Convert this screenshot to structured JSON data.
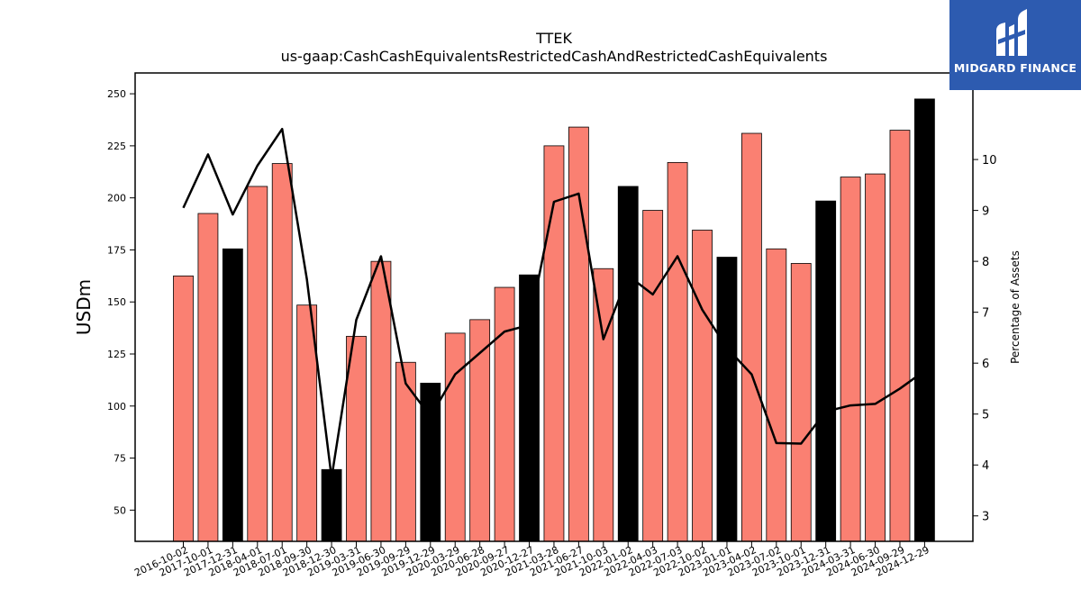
{
  "logo": {
    "text": "MIDGARD FINANCE",
    "bg_color": "#2d5bb0"
  },
  "chart_data": {
    "type": "bar",
    "title": "TTEK",
    "subtitle": "us-gaap:CashCashEquivalentsRestrictedCashAndRestrictedCashEquivalents",
    "ylabel": "USDm",
    "y2label": "Percentage of Assets",
    "ylim": [
      35,
      260
    ],
    "y2lim": [
      2.5,
      11.7
    ],
    "yticks": [
      50,
      75,
      100,
      125,
      150,
      175,
      200,
      225,
      250
    ],
    "y2ticks": [
      3,
      4,
      5,
      6,
      7,
      8,
      9,
      10
    ],
    "categories": [
      "2016-10-02",
      "2017-10-01",
      "2017-12-31",
      "2018-04-01",
      "2018-07-01",
      "2018-09-30",
      "2018-12-30",
      "2019-03-31",
      "2019-06-30",
      "2019-09-29",
      "2019-12-29",
      "2020-03-29",
      "2020-06-28",
      "2020-09-27",
      "2020-12-27",
      "2021-03-28",
      "2021-06-27",
      "2021-10-03",
      "2022-01-02",
      "2022-04-03",
      "2022-07-03",
      "2022-10-02",
      "2023-01-01",
      "2023-04-02",
      "2023-07-02",
      "2023-10-01",
      "2023-12-31",
      "2024-03-31",
      "2024-06-30",
      "2024-09-29",
      "2024-12-29"
    ],
    "series": [
      {
        "type": "bar",
        "values": [
          162.5,
          192.5,
          175.5,
          205.5,
          216.5,
          148.5,
          69.5,
          133.5,
          169.5,
          121,
          111,
          135,
          141.5,
          157,
          163,
          225,
          234,
          166,
          205.5,
          194,
          217,
          184.5,
          171.5,
          231,
          175.5,
          168.5,
          198.5,
          210,
          211.5,
          232.5,
          247.5
        ],
        "colors": [
          "#fa8072",
          "#fa8072",
          "#000000",
          "#fa8072",
          "#fa8072",
          "#fa8072",
          "#000000",
          "#fa8072",
          "#fa8072",
          "#fa8072",
          "#000000",
          "#fa8072",
          "#fa8072",
          "#fa8072",
          "#000000",
          "#fa8072",
          "#fa8072",
          "#fa8072",
          "#000000",
          "#fa8072",
          "#fa8072",
          "#fa8072",
          "#000000",
          "#fa8072",
          "#fa8072",
          "#fa8072",
          "#000000",
          "#fa8072",
          "#fa8072",
          "#fa8072",
          "#000000"
        ]
      },
      {
        "type": "line",
        "axis": "right",
        "color": "#000000",
        "values": [
          9.05,
          10.1,
          8.92,
          9.88,
          10.6,
          7.65,
          3.75,
          6.85,
          8.1,
          5.6,
          4.95,
          5.78,
          6.2,
          6.62,
          6.75,
          9.17,
          9.33,
          6.47,
          7.72,
          7.35,
          8.1,
          7.05,
          6.3,
          5.78,
          4.43,
          4.42,
          5.05,
          5.17,
          5.2,
          5.5,
          5.85
        ]
      }
    ],
    "grid": false,
    "legend": "none"
  }
}
